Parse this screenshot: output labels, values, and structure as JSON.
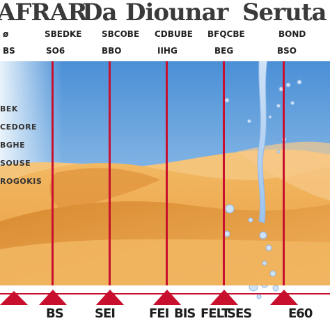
{
  "title": {
    "part1": "AFRAR",
    "part2": "Da",
    "part3": "Diounar",
    "part4": "Seruta"
  },
  "header_row1": [
    "ø",
    "SBEDKE",
    "SBCOBE",
    "CDBUBE",
    "BFQCBE",
    "BOND"
  ],
  "header_row2": [
    "BS",
    "SO6",
    "BBO",
    "IIHG",
    "BEG",
    "BSO"
  ],
  "left_labels": [
    "BEK",
    "CEDORE",
    "BGHE",
    "SOUSE",
    "ROGOKIS"
  ],
  "bottom_labels": [
    "BS",
    "SEI",
    "FEI",
    "BIS",
    "FELT",
    "SES",
    "E60"
  ],
  "colors": {
    "sky_top": "#4b90d8",
    "sand": "#e9a347",
    "line_red": "#c8102e",
    "water": "#b9d6f4"
  }
}
